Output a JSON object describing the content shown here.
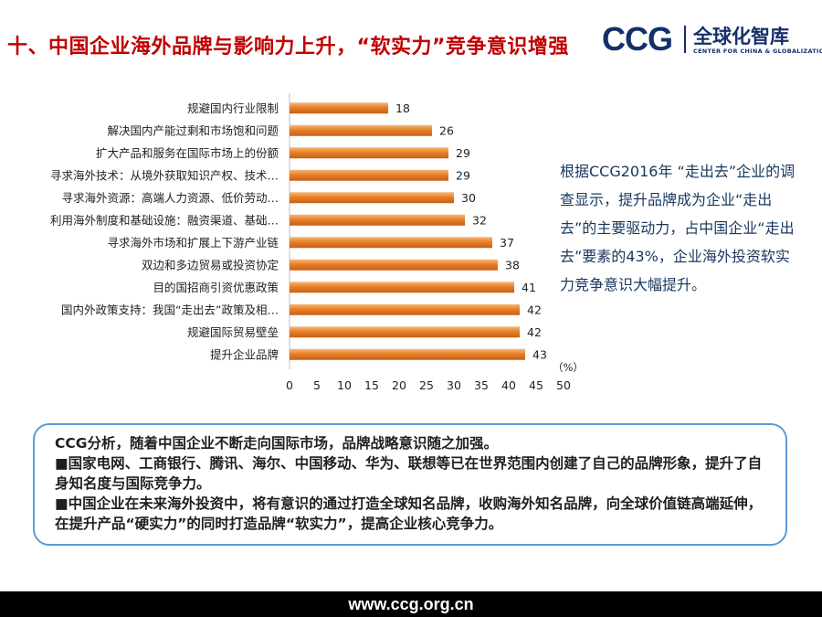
{
  "header": {
    "title": "十、中国企业海外品牌与影响力上升，“软实力”竞争意识增强"
  },
  "logo": {
    "abbr": "CCG",
    "name_cn": "全球化智库",
    "name_en": "CENTER FOR CHINA & GLOBALIZATION",
    "brand_color": "#14306b"
  },
  "chart_data": {
    "type": "bar",
    "orientation": "horizontal",
    "categories": [
      "规避国内行业限制",
      "解决国内产能过剩和市场饱和问题",
      "扩大产品和服务在国际市场上的份额",
      "寻求海外技术：从境外获取知识产权、技术…",
      "寻求海外资源：高端人力资源、低价劳动…",
      "利用海外制度和基础设施：融资渠道、基础…",
      "寻求海外市场和扩展上下游产业链",
      "双边和多边贸易或投资协定",
      "目的国招商引资优惠政策",
      "国内外政策支持：我国“走出去”政策及相…",
      "规避国际贸易壁垒",
      "提升企业品牌"
    ],
    "values": [
      18,
      26,
      29,
      29,
      30,
      32,
      37,
      38,
      41,
      42,
      42,
      43
    ],
    "xticks": [
      "0",
      "5",
      "10",
      "15",
      "20",
      "25",
      "30",
      "35",
      "40",
      "45",
      "50"
    ],
    "xlim": [
      0,
      50
    ],
    "unit_label": "（%）",
    "bar_color": "#e8802a",
    "grid": false
  },
  "side_note": {
    "text": "根据CCG2016年 “走出去”企业的调查显示，提升品牌成为企业“走出去”的主要驱动力，占中国企业“走出去”要素的43%，企业海外投资软实力竞争意识大幅提升。",
    "color": "#17375e"
  },
  "analysis": {
    "line1": "CCG分析，随着中国企业不断走向国际市场，品牌战略意识随之加强。",
    "line2": "■国家电网、工商银行、腾讯、海尔、中国移动、华为、联想等已在世界范围内创建了自己的品牌形象，提升了自身知名度与国际竞争力。",
    "line3": "■中国企业在未来海外投资中，将有意识的通过打造全球知名品牌，收购海外知名品牌，向全球价值链高端延伸，在提升产品“硬实力”的同时打造品牌“软实力”，提高企业核心竞争力。",
    "border_color": "#5a9bd5"
  },
  "footer": {
    "url": "www.ccg.org.cn"
  }
}
